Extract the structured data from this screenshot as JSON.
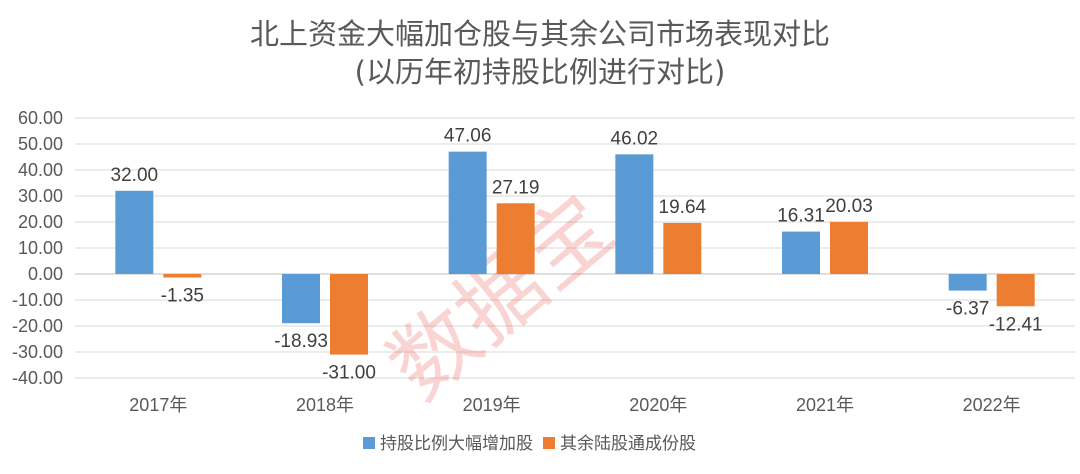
{
  "chart_data": {
    "type": "bar",
    "title": "北上资金大幅加仓股与其余公司市场表现对比",
    "subtitle": "(以历年初持股比例进行对比)",
    "categories": [
      "2017年",
      "2018年",
      "2019年",
      "2020年",
      "2021年",
      "2022年"
    ],
    "series": [
      {
        "name": "持股比例大幅增加股",
        "values": [
          32.0,
          -18.93,
          47.06,
          46.02,
          16.31,
          -6.37
        ],
        "labels": [
          "32.00",
          "-18.93",
          "47.06",
          "46.02",
          "16.31",
          "-6.37"
        ],
        "color": "#5b9bd5"
      },
      {
        "name": "其余陆股通成份股",
        "values": [
          -1.35,
          -31.0,
          27.19,
          19.64,
          20.03,
          -12.41
        ],
        "labels": [
          "-1.35",
          "-31.00",
          "27.19",
          "19.64",
          "20.03",
          "-12.41"
        ],
        "color": "#ed7d31"
      }
    ],
    "ylim": [
      -40,
      60
    ],
    "yticks": [
      "60.00",
      "50.00",
      "40.00",
      "30.00",
      "20.00",
      "10.00",
      "0.00",
      "-10.00",
      "-20.00",
      "-30.00",
      "-40.00"
    ],
    "grid": true,
    "legend_position": "bottom",
    "xlabel": "",
    "ylabel": ""
  },
  "watermark": "数据宝"
}
